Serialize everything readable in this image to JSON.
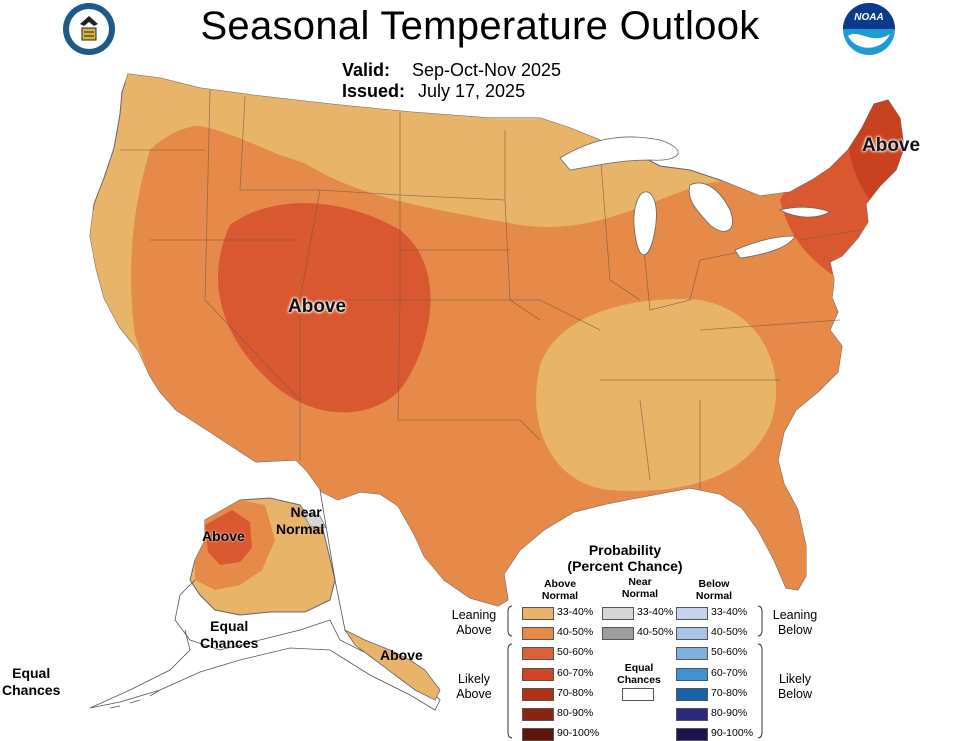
{
  "title": "Seasonal Temperature Outlook",
  "valid_label": "Valid:",
  "valid_value": "Sep-Oct-Nov 2025",
  "issued_label": "Issued:",
  "issued_value": "July 17, 2025",
  "logos": {
    "left": "department-of-commerce-seal",
    "right": "noaa-logo",
    "noaa_text": "NOAA"
  },
  "map_labels": {
    "west_above": "Above",
    "northeast_above": "Above",
    "alaska_above": "Above",
    "alaska_near_normal_1": "Near",
    "alaska_near_normal_2": "Normal",
    "alaska_equal_1": "Equal",
    "alaska_equal_2": "Chances",
    "aleutian_equal_1": "Equal",
    "aleutian_equal_2": "Chances",
    "panhandle_above": "Above"
  },
  "legend": {
    "title_1": "Probability",
    "title_2": "(Percent Chance)",
    "above_head_1": "Above",
    "above_head_2": "Normal",
    "near_head_1": "Near",
    "near_head_2": "Normal",
    "below_head_1": "Below",
    "below_head_2": "Normal",
    "leaning_above_1": "Leaning",
    "leaning_above_2": "Above",
    "likely_above_1": "Likely",
    "likely_above_2": "Above",
    "leaning_below_1": "Leaning",
    "leaning_below_2": "Below",
    "likely_below_1": "Likely",
    "likely_below_2": "Below",
    "equal_1": "Equal",
    "equal_2": "Chances",
    "above_bins": [
      {
        "label": "33-40%",
        "color": "#E8B469"
      },
      {
        "label": "40-50%",
        "color": "#E58A48"
      },
      {
        "label": "50-60%",
        "color": "#DC6138"
      },
      {
        "label": "60-70%",
        "color": "#CF4526"
      },
      {
        "label": "70-80%",
        "color": "#B13116"
      },
      {
        "label": "80-90%",
        "color": "#8A2410"
      },
      {
        "label": "90-100%",
        "color": "#5E1508"
      }
    ],
    "near_bins": [
      {
        "label": "33-40%",
        "color": "#D7D7D7"
      },
      {
        "label": "40-50%",
        "color": "#9E9E9E"
      }
    ],
    "below_bins": [
      {
        "label": "33-40%",
        "color": "#C7D3EC"
      },
      {
        "label": "40-50%",
        "color": "#A9C3E6"
      },
      {
        "label": "50-60%",
        "color": "#7FB1E0"
      },
      {
        "label": "60-70%",
        "color": "#3E94D2"
      },
      {
        "label": "70-80%",
        "color": "#1763A7"
      },
      {
        "label": "80-90%",
        "color": "#2B2A7C"
      },
      {
        "label": "90-100%",
        "color": "#1B1550"
      }
    ],
    "equal_color": "#FFFFFF"
  }
}
